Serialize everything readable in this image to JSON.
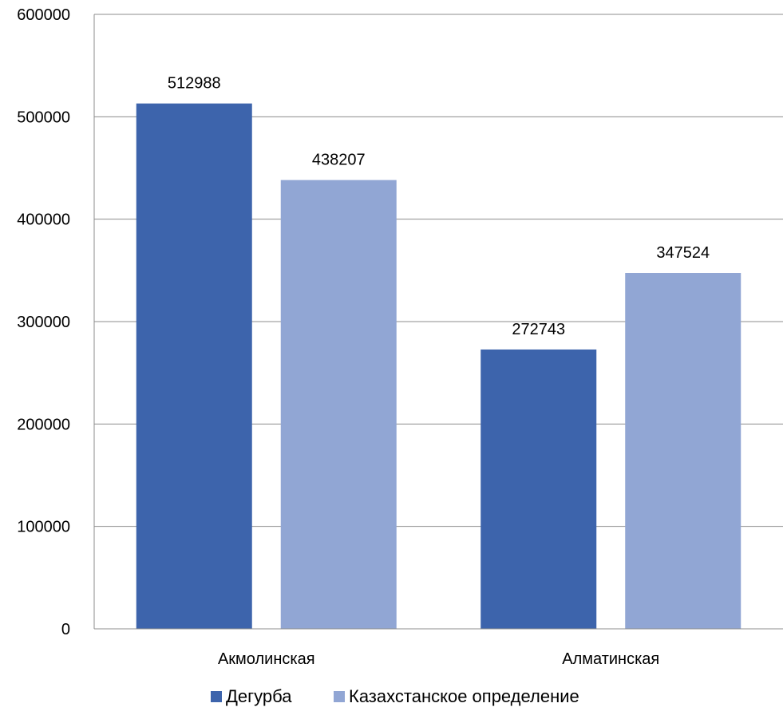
{
  "chart_data": {
    "type": "bar",
    "title": "",
    "xlabel": "",
    "ylabel": "",
    "categories": [
      "Акмолинская",
      "Алматинская"
    ],
    "series": [
      {
        "name": "Дегурба",
        "values": [
          512988,
          272743
        ],
        "color": "#3D64AC"
      },
      {
        "name": "Казахстанское определение",
        "values": [
          438207,
          347524
        ],
        "color": "#91A6D4"
      }
    ],
    "ylim": [
      0,
      600000
    ],
    "yticks": [
      0,
      100000,
      200000,
      300000,
      400000,
      500000,
      600000
    ],
    "grid": true,
    "legend_position": "bottom",
    "data_labels": true,
    "gridline_color": "#8C8C8C"
  }
}
